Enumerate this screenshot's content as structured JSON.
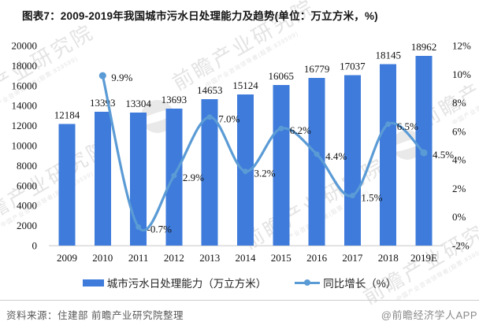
{
  "title": "图表7：2009-2019年我国城市污水日处理能力及趋势(单位：万立方米，%)",
  "chart_data": {
    "type": "bar+line",
    "title": "图表7：2009-2019年我国城市污水日处理能力及趋势(单位：万立方米，%)",
    "categories": [
      "2009",
      "2010",
      "2011",
      "2012",
      "2013",
      "2014",
      "2015",
      "2016",
      "2017",
      "2018",
      "2019E"
    ],
    "series": [
      {
        "name": "城市污水日处理能力（万立方米）",
        "type": "bar",
        "values": [
          12184,
          13393,
          13304,
          13693,
          14653,
          15124,
          16065,
          16779,
          17037,
          18145,
          18962
        ]
      },
      {
        "name": "同比增长（%）",
        "type": "line",
        "values": [
          null,
          9.9,
          -0.7,
          2.9,
          7.0,
          3.2,
          6.2,
          4.4,
          1.5,
          6.5,
          4.5
        ]
      }
    ],
    "left_axis": {
      "min": 0,
      "max": 20000,
      "step": 2000
    },
    "right_axis": {
      "min": -2,
      "max": 12,
      "step": 2,
      "suffix": "%"
    },
    "colors": {
      "bar": "#3E7BDB",
      "line": "#5B9BD5"
    },
    "legend_position": "bottom",
    "grid": false
  },
  "watermark": {
    "text": "前瞻产业研究院",
    "subtext": "中国产业咨询领导者(股票:839599)"
  },
  "footer": {
    "source": "资料来源：住建部 前瞻产业研究院整理",
    "credit": "@前瞻经济学人APP"
  }
}
